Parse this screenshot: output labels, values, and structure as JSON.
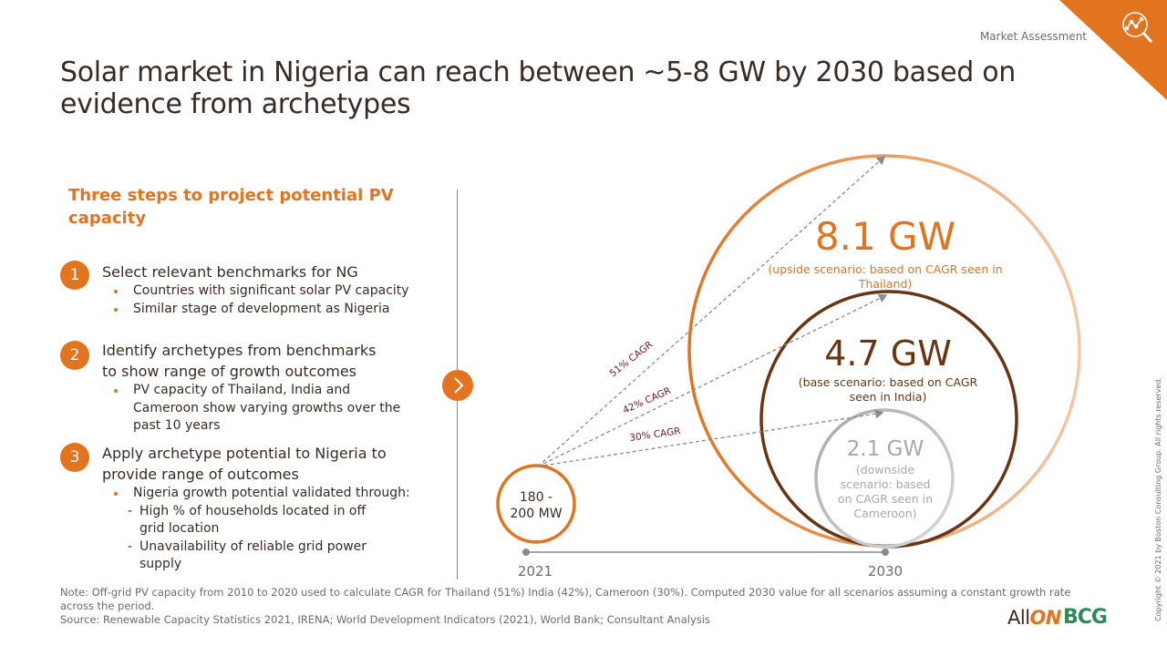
{
  "header": {
    "category": "Market Assessment",
    "title": "Solar market in Nigeria can reach between ~5-8 GW by 2030 based on evidence from archetypes",
    "corner_icon": "magnifier-chart-icon"
  },
  "steps": {
    "heading": "Three steps to project potential PV capacity",
    "items": [
      {
        "number": "1",
        "text": "Select relevant benchmarks for NG",
        "bullets": [
          "Countries with significant solar PV capacity",
          "Similar stage of development as Nigeria"
        ]
      },
      {
        "number": "2",
        "text_lines": [
          "Identify archetypes from benchmarks",
          "to show range of growth outcomes"
        ],
        "bullets": [
          "PV capacity of Thailand, India and Cameroon show varying growths over the past 10 years"
        ]
      },
      {
        "number": "3",
        "text_lines": [
          "Apply archetype potential to Nigeria to",
          "provide range of outcomes"
        ],
        "bullets": [
          "Nigeria growth potential validated through:"
        ],
        "sub_bullets": [
          "High % of households located in off grid location",
          "Unavailability of reliable grid power supply"
        ]
      }
    ],
    "next_icon": "chevron-right-icon"
  },
  "diagram": {
    "start": {
      "value_line1": "180 -",
      "value_line2": "200 MW",
      "year": "2021"
    },
    "end_year": "2030",
    "cagr_labels": [
      "51% CAGR",
      "42% CAGR",
      "30% CAGR"
    ],
    "scenarios": [
      {
        "value": "8.1 GW",
        "desc_lines": [
          "(upside scenario: based on CAGR seen in",
          "Thailand)"
        ],
        "color": "#e2731f"
      },
      {
        "value": "4.7 GW",
        "desc_lines": [
          "(base scenario: based on CAGR",
          "seen in India)"
        ],
        "color": "#6b3410"
      },
      {
        "value": "2.1 GW",
        "desc_lines": [
          "(downside",
          "scenario: based",
          "on CAGR seen in",
          "Cameroon)"
        ],
        "color": "#a8a8a8"
      }
    ]
  },
  "footer": {
    "note": "Note: Off-grid PV capacity from 2010 to 2020 used to calculate CAGR for Thailand (51%) India (42%), Cameroon (30%). Computed 2030 value for all scenarios assuming a constant growth rate across the period.",
    "source": "Source: Renewable Capacity Statistics 2021, IRENA; World Development Indicators (2021), World Bank; Consultant Analysis",
    "copyright": "Copyright © 2021 by Boston Consulting Group. All rights reserved.",
    "logo_allon_a": "All",
    "logo_allon_b": "ON",
    "logo_bcg": "BCG"
  },
  "colors": {
    "accent": "#e2731f",
    "base": "#6b3410",
    "downside": "#a8a8a8",
    "text": "#3a2a24"
  }
}
